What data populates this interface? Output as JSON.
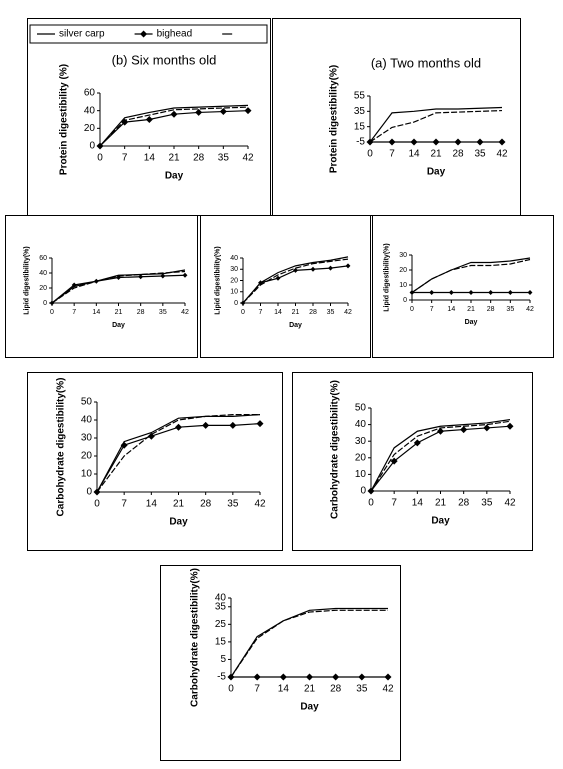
{
  "chart_data": [
    {
      "type": "line",
      "title": "(b) Six months old",
      "ylabel": "Protein digestibility (%)",
      "xlabel": "Day",
      "x": [
        0,
        7,
        14,
        21,
        28,
        35,
        42
      ],
      "xlim": [
        0,
        42
      ],
      "xticks": [
        0,
        7,
        14,
        21,
        28,
        35,
        42
      ],
      "ylim": [
        0,
        60
      ],
      "yticks": [
        0,
        20,
        40,
        60
      ],
      "legend": "top",
      "series": [
        {
          "name": "silver carp",
          "color": "#000000",
          "values": [
            0,
            32,
            38,
            43,
            44,
            45,
            46
          ]
        },
        {
          "name": "bighead",
          "color": "#000000",
          "marker": "diamond",
          "values": [
            0,
            27,
            30,
            36,
            38,
            39,
            40
          ]
        },
        {
          "color": "#000000",
          "dash": true,
          "values": [
            0,
            29,
            35,
            41,
            42,
            43,
            44
          ]
        }
      ]
    },
    {
      "type": "line",
      "title": "(a) Two months old",
      "ylabel": "Protein digestibility(%)",
      "xlabel": "Day",
      "x": [
        0,
        7,
        14,
        21,
        28,
        35,
        42
      ],
      "xlim": [
        0,
        42
      ],
      "xticks": [
        0,
        7,
        14,
        21,
        28,
        35,
        42
      ],
      "ylim": [
        -5,
        55
      ],
      "yticks": [
        -5,
        15,
        35,
        55
      ],
      "series": [
        {
          "name": "silver carp",
          "color": "#000000",
          "values": [
            -5,
            33,
            35,
            38,
            38,
            39,
            40
          ]
        },
        {
          "name": "bighead",
          "color": "#000000",
          "marker": "diamond",
          "values": [
            -5,
            -5,
            -5,
            -5,
            -5,
            -5,
            -5
          ]
        },
        {
          "color": "#000000",
          "dash": true,
          "values": [
            -5,
            14,
            21,
            33,
            34,
            35,
            36
          ]
        }
      ]
    },
    {
      "type": "line",
      "ylabel": "Lipid digestibility(%)",
      "xlabel": "Day",
      "x": [
        0,
        7,
        14,
        21,
        28,
        35,
        42
      ],
      "xlim": [
        0,
        42
      ],
      "xticks": [
        0,
        7,
        14,
        21,
        28,
        35,
        42
      ],
      "ylim": [
        0,
        60
      ],
      "yticks": [
        0,
        20,
        40,
        60
      ],
      "series": [
        {
          "name": "silver carp",
          "color": "#000000",
          "values": [
            0,
            22,
            29,
            37,
            38,
            39,
            44
          ]
        },
        {
          "name": "bighead",
          "color": "#000000",
          "marker": "diamond",
          "values": [
            0,
            24,
            29,
            34,
            35,
            36,
            37
          ]
        },
        {
          "color": "#000000",
          "dash": true,
          "values": [
            0,
            20,
            29,
            36,
            38,
            40,
            42
          ]
        }
      ]
    },
    {
      "type": "line",
      "ylabel": "Lipid digestibility(%)",
      "xlabel": "Day",
      "x": [
        0,
        7,
        14,
        21,
        28,
        35,
        42
      ],
      "xlim": [
        0,
        42
      ],
      "xticks": [
        0,
        7,
        14,
        21,
        28,
        35,
        42
      ],
      "ylim": [
        0,
        40
      ],
      "yticks": [
        0,
        10,
        20,
        30,
        40
      ],
      "series": [
        {
          "name": "silver carp",
          "color": "#000000",
          "values": [
            0,
            18,
            27,
            33,
            36,
            38,
            41
          ]
        },
        {
          "name": "bighead",
          "color": "#000000",
          "marker": "diamond",
          "values": [
            0,
            18,
            22,
            29,
            30,
            31,
            33
          ]
        },
        {
          "color": "#000000",
          "dash": true,
          "values": [
            0,
            16,
            25,
            31,
            35,
            37,
            39
          ]
        }
      ]
    },
    {
      "type": "line",
      "ylabel": "Lipid digestibility(%)",
      "xlabel": "Day",
      "x": [
        0,
        7,
        14,
        21,
        28,
        35,
        42
      ],
      "xlim": [
        0,
        42
      ],
      "xticks": [
        0,
        7,
        14,
        21,
        28,
        35,
        42
      ],
      "ylim": [
        0,
        30
      ],
      "yticks": [
        0,
        10,
        20,
        30
      ],
      "series": [
        {
          "name": "silver carp",
          "color": "#000000",
          "values": [
            5,
            14,
            20,
            25,
            25,
            26,
            28
          ]
        },
        {
          "name": "bighead",
          "color": "#000000",
          "marker": "diamond",
          "values": [
            5,
            5,
            5,
            5,
            5,
            5,
            5
          ]
        },
        {
          "color": "#000000",
          "dash": true,
          "values": [
            5,
            14,
            20,
            23,
            23,
            24,
            27
          ]
        }
      ]
    },
    {
      "type": "line",
      "ylabel": "Carbohydrate digestibility(%)",
      "xlabel": "Day",
      "x": [
        0,
        7,
        14,
        21,
        28,
        35,
        42
      ],
      "xlim": [
        0,
        42
      ],
      "xticks": [
        0,
        7,
        14,
        21,
        28,
        35,
        42
      ],
      "ylim": [
        0,
        50
      ],
      "yticks": [
        0,
        10,
        20,
        30,
        40,
        50
      ],
      "series": [
        {
          "name": "silver carp",
          "color": "#000000",
          "values": [
            0,
            28,
            33,
            41,
            42,
            42,
            43
          ]
        },
        {
          "name": "bighead",
          "color": "#000000",
          "marker": "diamond",
          "values": [
            0,
            26,
            31,
            36,
            37,
            37,
            38
          ]
        },
        {
          "color": "#000000",
          "dash": true,
          "values": [
            0,
            20,
            32,
            40,
            42,
            43,
            43
          ]
        }
      ]
    },
    {
      "type": "line",
      "ylabel": "Carbohydrate digestibility(%)",
      "xlabel": "Day",
      "x": [
        0,
        7,
        14,
        21,
        28,
        35,
        42
      ],
      "xlim": [
        0,
        42
      ],
      "xticks": [
        0,
        7,
        14,
        21,
        28,
        35,
        42
      ],
      "ylim": [
        0,
        50
      ],
      "yticks": [
        0,
        10,
        20,
        30,
        40,
        50
      ],
      "series": [
        {
          "name": "silver carp",
          "color": "#000000",
          "values": [
            0,
            26,
            36,
            39,
            40,
            41,
            43
          ]
        },
        {
          "name": "bighead",
          "color": "#000000",
          "marker": "diamond",
          "values": [
            0,
            18,
            29,
            36,
            37,
            38,
            39
          ]
        },
        {
          "color": "#000000",
          "dash": true,
          "values": [
            0,
            22,
            33,
            38,
            39,
            40,
            42
          ]
        }
      ]
    },
    {
      "type": "line",
      "ylabel": "Carbohydrate digestibility(%)",
      "xlabel": "Day",
      "x": [
        0,
        7,
        14,
        21,
        28,
        35,
        42
      ],
      "xlim": [
        0,
        42
      ],
      "xticks": [
        0,
        7,
        14,
        21,
        28,
        35,
        42
      ],
      "ylim": [
        -5,
        40
      ],
      "yticks": [
        -5,
        5,
        15,
        25,
        35,
        40
      ],
      "series": [
        {
          "name": "silver carp",
          "color": "#000000",
          "values": [
            -5,
            18,
            27,
            33,
            34,
            34,
            34
          ]
        },
        {
          "name": "bighead",
          "color": "#000000",
          "marker": "diamond",
          "values": [
            -5,
            -5,
            -5,
            -5,
            -5,
            -5,
            -5
          ]
        },
        {
          "color": "#000000",
          "dash": true,
          "values": [
            -5,
            17,
            27,
            32,
            33,
            33,
            33
          ]
        }
      ]
    }
  ]
}
